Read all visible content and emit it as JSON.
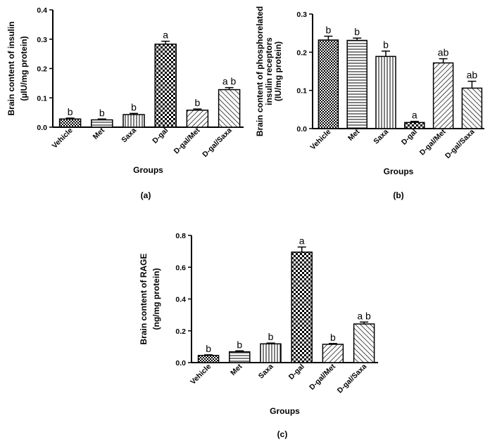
{
  "chart_data": [
    {
      "panel": "(a)",
      "type": "bar",
      "categories": [
        "Vehicle",
        "Met",
        "Saxa",
        "D-gal",
        "D-gal/Met",
        "D-gal/Saxa"
      ],
      "values": [
        0.028,
        0.025,
        0.043,
        0.283,
        0.058,
        0.128
      ],
      "errors": [
        0.003,
        0.003,
        0.004,
        0.01,
        0.004,
        0.007
      ],
      "significance": [
        "b",
        "b",
        "b",
        "a",
        "b",
        "a b"
      ],
      "patterns": [
        "checker-small",
        "horizontal",
        "vertical",
        "checker",
        "diag-right",
        "diag-left"
      ],
      "ylabel_lines": [
        "Brain content of insulin",
        "(µIU/mg protein)"
      ],
      "xlabel": "Groups",
      "ylim": [
        0,
        0.4
      ],
      "yticks": [
        "0.0",
        "0.1",
        "0.2",
        "0.3",
        "0.4"
      ],
      "ytick_values": [
        0,
        0.1,
        0.2,
        0.3,
        0.4
      ]
    },
    {
      "panel": "(b)",
      "type": "bar",
      "categories": [
        "Vehicle",
        "Met",
        "Saxa",
        "D-gal",
        "D-gal/Met",
        "D-gal/Saxa"
      ],
      "values": [
        0.232,
        0.231,
        0.189,
        0.016,
        0.172,
        0.106
      ],
      "errors": [
        0.01,
        0.006,
        0.014,
        0.003,
        0.011,
        0.018
      ],
      "significance": [
        "b",
        "b",
        "b",
        "a",
        "ab",
        "ab"
      ],
      "patterns": [
        "checker-small",
        "horizontal",
        "vertical",
        "checker",
        "diag-right",
        "diag-left"
      ],
      "ylabel_lines": [
        "Brain content of phosphorelated",
        "insulin receptors",
        "(IU/mg protein)"
      ],
      "xlabel": "Groups",
      "ylim": [
        0,
        0.3
      ],
      "yticks": [
        "0.0",
        "0.1",
        "0.2",
        "0.3"
      ],
      "ytick_values": [
        0,
        0.1,
        0.2,
        0.3
      ]
    },
    {
      "panel": "(c)",
      "type": "bar",
      "categories": [
        "Vehicle",
        "Met",
        "Saxa",
        "D-gal",
        "D-gal/Met",
        "D-gal/Saxa"
      ],
      "values": [
        0.045,
        0.068,
        0.118,
        0.695,
        0.115,
        0.243
      ],
      "errors": [
        0.004,
        0.006,
        0.005,
        0.032,
        0.005,
        0.012
      ],
      "significance": [
        "b",
        "b",
        "b",
        "a",
        "b",
        "a b"
      ],
      "patterns": [
        "checker-small",
        "horizontal",
        "vertical",
        "checker",
        "diag-right",
        "diag-left"
      ],
      "ylabel_lines": [
        "Brain content of RAGE",
        "(ng/mg protein)"
      ],
      "xlabel": "Groups",
      "ylim": [
        0,
        0.8
      ],
      "yticks": [
        "0.0",
        "0.2",
        "0.4",
        "0.6",
        "0.8"
      ],
      "ytick_values": [
        0,
        0.2,
        0.4,
        0.6,
        0.8
      ]
    }
  ]
}
